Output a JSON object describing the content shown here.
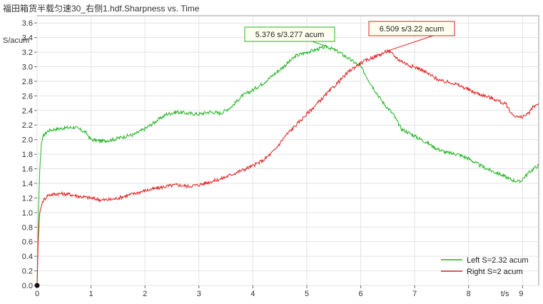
{
  "chart_data": {
    "type": "line",
    "title": "福田箱货半载匀速30_右侧1.hdf.Sharpness vs. Time",
    "ylabel": "S/acum",
    "xlabel": "t/s",
    "xlim": [
      0,
      9.3
    ],
    "ylim": [
      0,
      3.7
    ],
    "x_ticks": [
      0,
      1,
      2,
      3,
      4,
      5,
      6,
      7,
      8,
      9
    ],
    "y_ticks": [
      0.0,
      0.2,
      0.4,
      0.6,
      0.8,
      1.0,
      1.2,
      1.4,
      1.6,
      1.8,
      2.0,
      2.2,
      2.4,
      2.6,
      2.8,
      3.0,
      3.2,
      3.4,
      3.6
    ],
    "grid": true,
    "legend_position": "bottom-right",
    "series": [
      {
        "name": "Left S=2.32 acum",
        "color": "#22b422",
        "points": [
          [
            0.0,
            0.0
          ],
          [
            0.02,
            0.9
          ],
          [
            0.05,
            1.6
          ],
          [
            0.08,
            1.95
          ],
          [
            0.12,
            2.06
          ],
          [
            0.2,
            2.12
          ],
          [
            0.3,
            2.14
          ],
          [
            0.5,
            2.16
          ],
          [
            0.7,
            2.17
          ],
          [
            0.9,
            2.1
          ],
          [
            1.0,
            2.0
          ],
          [
            1.2,
            1.98
          ],
          [
            1.4,
            2.0
          ],
          [
            1.6,
            2.04
          ],
          [
            1.8,
            2.07
          ],
          [
            2.0,
            2.15
          ],
          [
            2.2,
            2.25
          ],
          [
            2.4,
            2.35
          ],
          [
            2.6,
            2.38
          ],
          [
            2.8,
            2.36
          ],
          [
            3.0,
            2.35
          ],
          [
            3.2,
            2.38
          ],
          [
            3.4,
            2.36
          ],
          [
            3.6,
            2.45
          ],
          [
            3.8,
            2.6
          ],
          [
            4.0,
            2.68
          ],
          [
            4.2,
            2.78
          ],
          [
            4.4,
            2.9
          ],
          [
            4.6,
            3.02
          ],
          [
            4.8,
            3.15
          ],
          [
            5.0,
            3.2
          ],
          [
            5.2,
            3.24
          ],
          [
            5.376,
            3.277
          ],
          [
            5.6,
            3.2
          ],
          [
            5.8,
            3.1
          ],
          [
            6.0,
            3.0
          ],
          [
            6.2,
            2.75
          ],
          [
            6.4,
            2.52
          ],
          [
            6.6,
            2.35
          ],
          [
            6.75,
            2.15
          ],
          [
            7.0,
            2.05
          ],
          [
            7.2,
            1.97
          ],
          [
            7.4,
            1.88
          ],
          [
            7.6,
            1.82
          ],
          [
            7.8,
            1.8
          ],
          [
            8.0,
            1.74
          ],
          [
            8.2,
            1.65
          ],
          [
            8.4,
            1.58
          ],
          [
            8.6,
            1.52
          ],
          [
            8.8,
            1.45
          ],
          [
            8.95,
            1.42
          ],
          [
            9.05,
            1.5
          ],
          [
            9.2,
            1.6
          ],
          [
            9.3,
            1.65
          ]
        ]
      },
      {
        "name": "Right S=2 acum",
        "color": "#e02020",
        "points": [
          [
            0.0,
            0.0
          ],
          [
            0.02,
            0.6
          ],
          [
            0.05,
            1.0
          ],
          [
            0.1,
            1.15
          ],
          [
            0.2,
            1.24
          ],
          [
            0.4,
            1.26
          ],
          [
            0.6,
            1.25
          ],
          [
            0.8,
            1.22
          ],
          [
            1.0,
            1.2
          ],
          [
            1.2,
            1.17
          ],
          [
            1.4,
            1.18
          ],
          [
            1.6,
            1.22
          ],
          [
            1.8,
            1.26
          ],
          [
            2.0,
            1.3
          ],
          [
            2.2,
            1.33
          ],
          [
            2.4,
            1.36
          ],
          [
            2.6,
            1.38
          ],
          [
            2.8,
            1.36
          ],
          [
            3.0,
            1.38
          ],
          [
            3.2,
            1.42
          ],
          [
            3.4,
            1.46
          ],
          [
            3.6,
            1.52
          ],
          [
            3.8,
            1.58
          ],
          [
            4.0,
            1.64
          ],
          [
            4.2,
            1.72
          ],
          [
            4.4,
            1.85
          ],
          [
            4.6,
            2.05
          ],
          [
            4.8,
            2.2
          ],
          [
            5.0,
            2.35
          ],
          [
            5.2,
            2.5
          ],
          [
            5.4,
            2.65
          ],
          [
            5.6,
            2.8
          ],
          [
            5.8,
            2.95
          ],
          [
            6.0,
            3.05
          ],
          [
            6.2,
            3.12
          ],
          [
            6.4,
            3.18
          ],
          [
            6.509,
            3.22
          ],
          [
            6.7,
            3.1
          ],
          [
            6.9,
            3.02
          ],
          [
            7.1,
            2.97
          ],
          [
            7.3,
            2.88
          ],
          [
            7.5,
            2.8
          ],
          [
            7.7,
            2.78
          ],
          [
            7.9,
            2.72
          ],
          [
            8.1,
            2.65
          ],
          [
            8.3,
            2.6
          ],
          [
            8.5,
            2.55
          ],
          [
            8.7,
            2.48
          ],
          [
            8.8,
            2.35
          ],
          [
            8.95,
            2.3
          ],
          [
            9.1,
            2.35
          ],
          [
            9.2,
            2.45
          ],
          [
            9.3,
            2.5
          ]
        ]
      }
    ],
    "annotations": [
      {
        "text": "5.376 s/3.277 acum",
        "x": 5.376,
        "y": 3.277,
        "color": "#22b422"
      },
      {
        "text": "6.509 s/3.22 acum",
        "x": 6.509,
        "y": 3.22,
        "color": "#e02020"
      }
    ]
  }
}
